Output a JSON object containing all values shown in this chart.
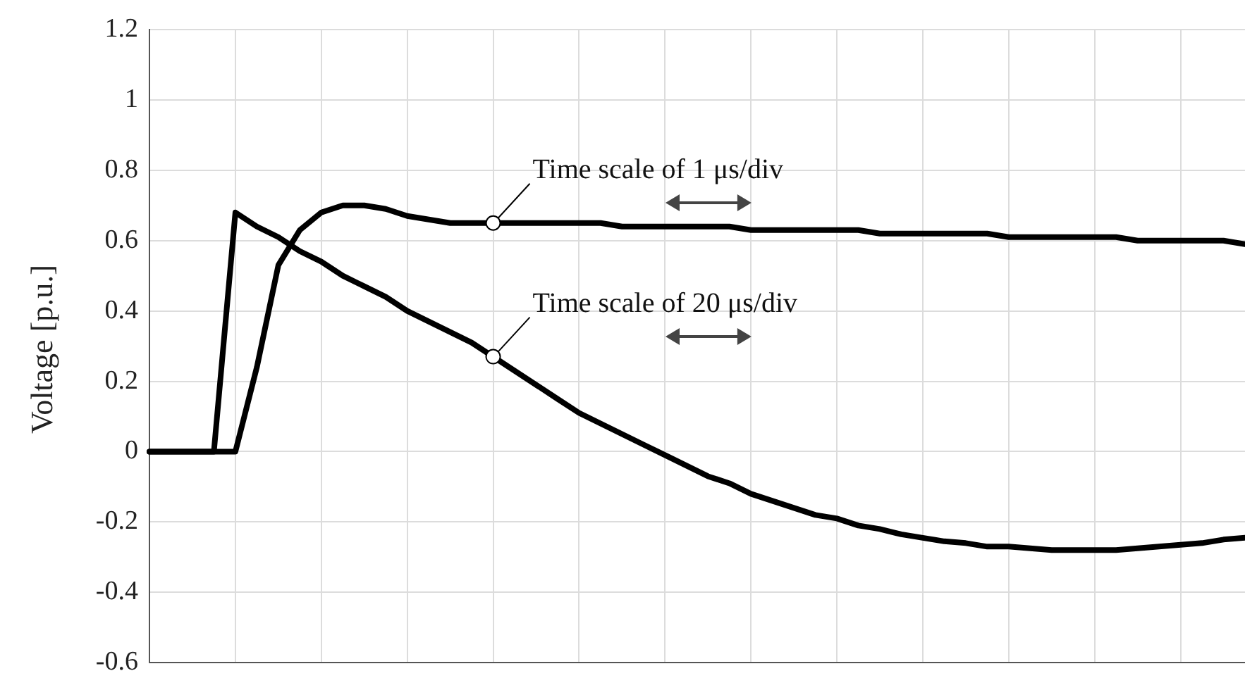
{
  "chart_data": {
    "type": "line",
    "ylabel": "Voltage [p.u.]",
    "categories": [
      null,
      null,
      null,
      null,
      null,
      null,
      null,
      null,
      null,
      null,
      null,
      null,
      null,
      null,
      null,
      null,
      null,
      null,
      null,
      null,
      null,
      null,
      null,
      null,
      null,
      null,
      null,
      null,
      null,
      null,
      null,
      null,
      null,
      null,
      null,
      null,
      null,
      null,
      null,
      null,
      null,
      null,
      null,
      null,
      null,
      null,
      null,
      null,
      null,
      null,
      null,
      null
    ],
    "ylim": [
      -0.6,
      1.2
    ],
    "yticks": [
      -0.6,
      -0.4,
      -0.2,
      0,
      0.2,
      0.4,
      0.6,
      0.8,
      1,
      1.2
    ],
    "grid": true,
    "marker": "none",
    "line_style": "solid",
    "series": [
      {
        "name": "Time scale of 1 μs/div",
        "color": "#000000",
        "values": [
          0,
          0,
          0,
          0,
          0,
          0.24,
          0.53,
          0.63,
          0.68,
          0.7,
          0.7,
          0.69,
          0.67,
          0.66,
          0.65,
          0.65,
          0.65,
          0.65,
          0.65,
          0.65,
          0.65,
          0.65,
          0.64,
          0.64,
          0.64,
          0.64,
          0.64,
          0.64,
          0.63,
          0.63,
          0.63,
          0.63,
          0.63,
          0.63,
          0.62,
          0.62,
          0.62,
          0.62,
          0.62,
          0.62,
          0.61,
          0.61,
          0.61,
          0.61,
          0.61,
          0.61,
          0.6,
          0.6,
          0.6,
          0.6,
          0.6,
          0.59
        ]
      },
      {
        "name": "Time scale of 20 μs/div",
        "color": "#000000",
        "values": [
          0,
          0,
          0,
          0,
          0.68,
          0.64,
          0.61,
          0.57,
          0.54,
          0.5,
          0.47,
          0.44,
          0.4,
          0.37,
          0.34,
          0.31,
          0.27,
          0.23,
          0.19,
          0.15,
          0.11,
          0.08,
          0.05,
          0.02,
          -0.01,
          -0.04,
          -0.07,
          -0.09,
          -0.12,
          -0.14,
          -0.16,
          -0.18,
          -0.19,
          -0.21,
          -0.22,
          -0.235,
          -0.245,
          -0.255,
          -0.26,
          -0.27,
          -0.27,
          -0.275,
          -0.28,
          -0.28,
          -0.28,
          -0.28,
          -0.275,
          -0.27,
          -0.265,
          -0.26,
          -0.25,
          -0.245
        ]
      }
    ]
  }
}
